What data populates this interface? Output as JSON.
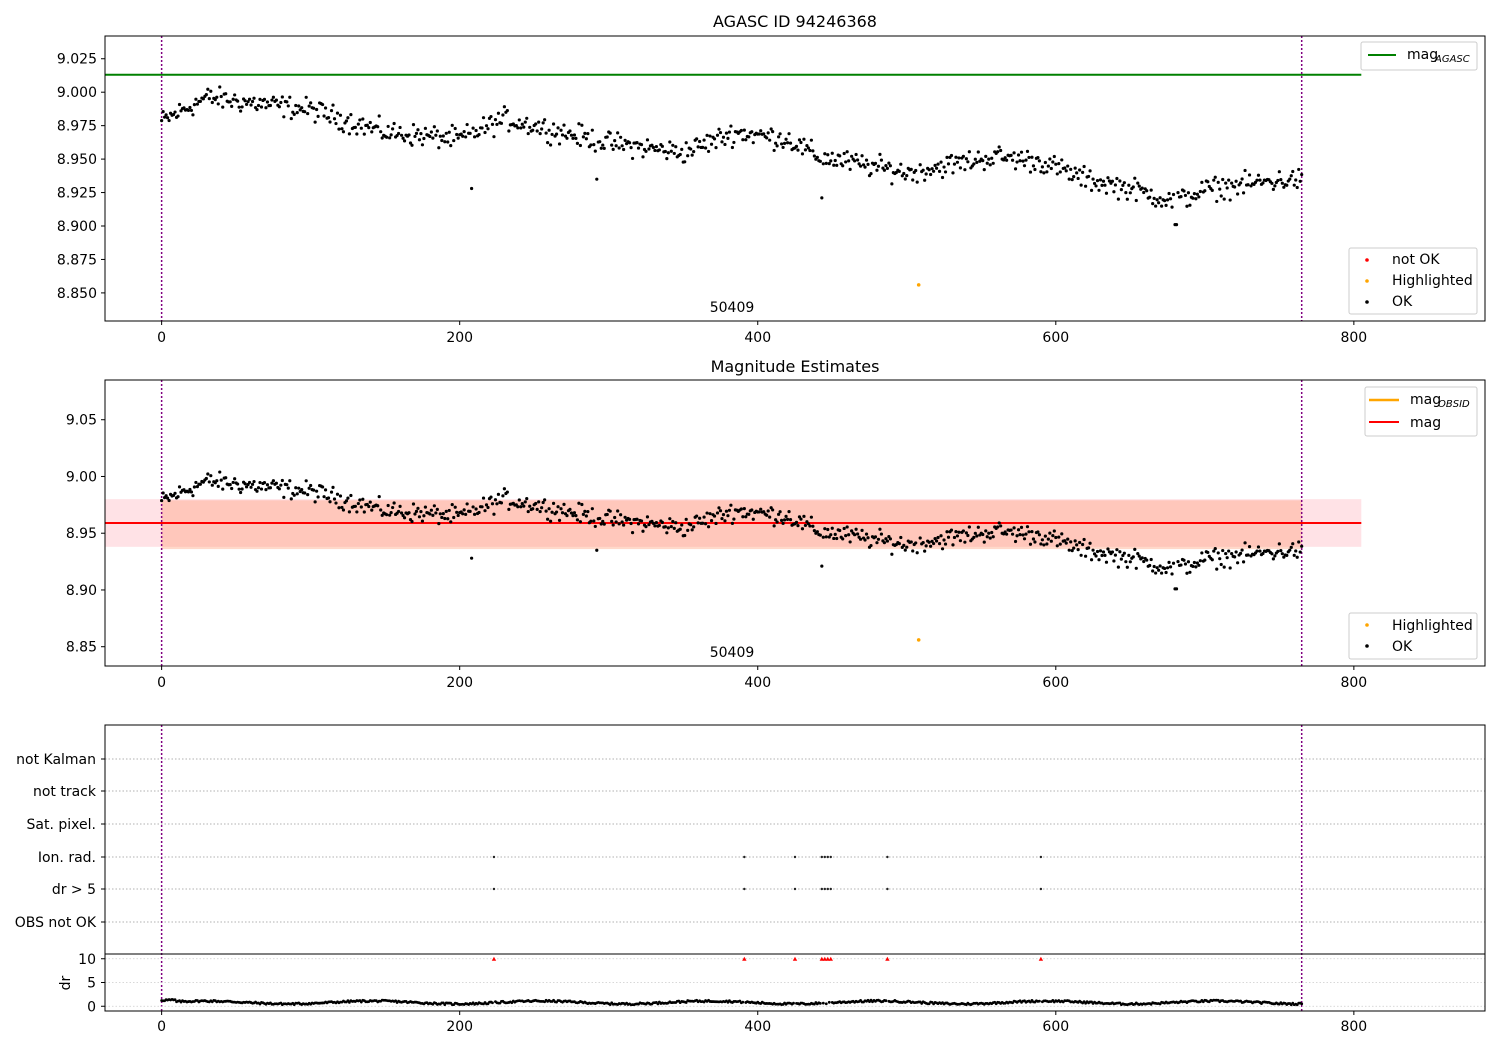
{
  "chart_data": [
    {
      "type": "scatter",
      "title": "AGASC ID 94246368",
      "xlim": [
        -38,
        888
      ],
      "ylim": [
        8.829,
        9.042
      ],
      "yticks": [
        8.85,
        8.875,
        8.9,
        8.925,
        8.95,
        8.975,
        9.0,
        9.025
      ],
      "xticks": [
        0,
        200,
        400,
        600,
        800
      ],
      "mag_agasc": 9.013,
      "obs_boundaries": [
        0,
        765
      ],
      "obs_label": "50409",
      "legend_top": [
        {
          "label": "mag",
          "sub": "AGASC",
          "color": "#008000"
        }
      ],
      "legend_bottom": [
        {
          "label": "not OK",
          "color": "#ff0000"
        },
        {
          "label": "Highlighted",
          "color": "#ffa500"
        },
        {
          "label": "OK",
          "color": "#000000"
        }
      ],
      "highlighted": [
        {
          "x": 508,
          "y": 8.856
        }
      ]
    },
    {
      "type": "scatter",
      "title": "Magnitude Estimates",
      "xlim": [
        -38,
        888
      ],
      "ylim": [
        8.833,
        9.085
      ],
      "yticks": [
        8.85,
        8.9,
        8.95,
        9.0,
        9.05
      ],
      "xticks": [
        0,
        200,
        400,
        600,
        800
      ],
      "mag": 8.959,
      "mag_band": [
        8.938,
        8.98
      ],
      "obsid_band": [
        8.936,
        8.979
      ],
      "obs_label": "50409",
      "legend_top": [
        {
          "label": "mag",
          "sub": "OBSID",
          "color": "#ffa500"
        },
        {
          "label": "mag",
          "sub": "",
          "color": "#ff0000"
        }
      ],
      "legend_bottom": [
        {
          "label": "Highlighted",
          "color": "#ffa500"
        },
        {
          "label": "OK",
          "color": "#000000"
        }
      ],
      "highlighted": [
        {
          "x": 508,
          "y": 8.856
        }
      ]
    },
    {
      "type": "scatter",
      "flag_rows": [
        "not Kalman",
        "not track",
        "Sat. pixel.",
        "Ion. rad.",
        "dr > 5",
        "OBS not OK"
      ],
      "flag_points": {
        "Ion. rad.": [
          223,
          391,
          425,
          443,
          445,
          447,
          449,
          487,
          590
        ],
        "dr > 5": [
          223,
          391,
          425,
          443,
          445,
          447,
          449,
          487,
          590
        ]
      },
      "dr_ylabel": "dr",
      "dr_yticks": [
        0,
        5,
        10
      ],
      "dr_ylim": [
        -1,
        11
      ],
      "dr_clipped_x": [
        223,
        391,
        425,
        443,
        445,
        447,
        449,
        487,
        590
      ],
      "xticks": [
        0,
        200,
        400,
        600,
        800
      ],
      "xlim": [
        -38,
        888
      ]
    }
  ],
  "series_color": "#000000"
}
